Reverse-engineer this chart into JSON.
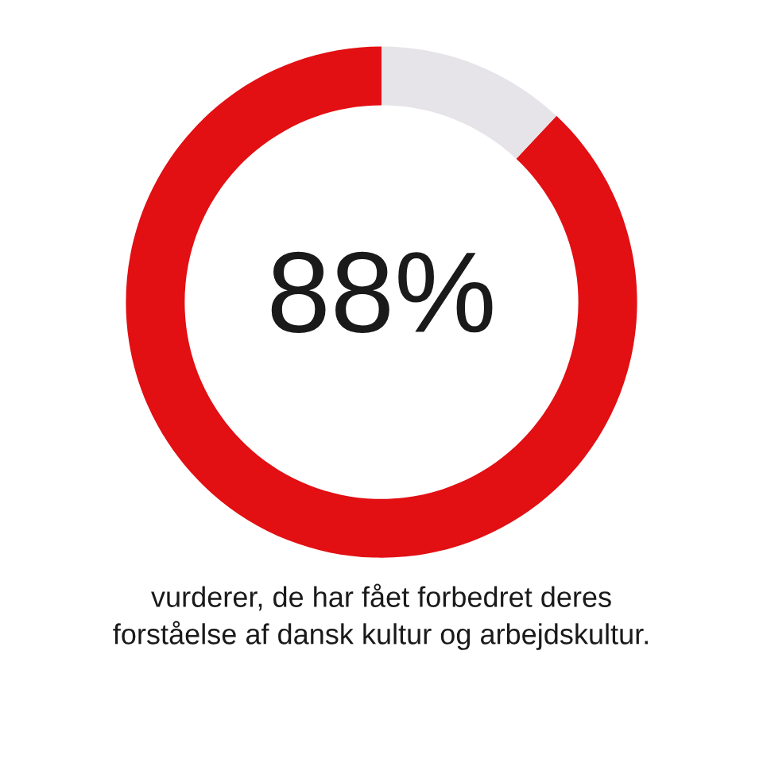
{
  "chart_data": {
    "type": "donut",
    "categories": [
      null,
      null
    ],
    "values": [
      88,
      12
    ],
    "colors": [
      "#e20f13",
      "#e6e4e8"
    ],
    "annotations": [
      "88%",
      "vurderer, de har fået forbedret deres\nforståelse af dansk kultur og arbejdskultur."
    ]
  }
}
